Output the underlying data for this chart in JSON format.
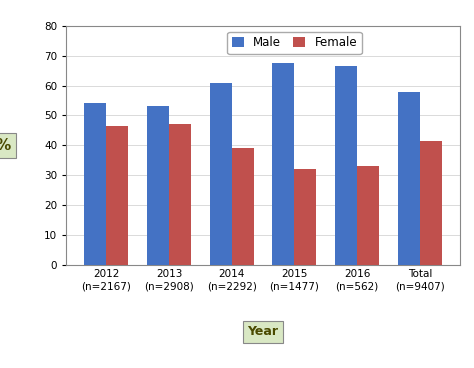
{
  "categories": [
    "2012\n(n=2167)",
    "2013\n(n=2908)",
    "2014\n(n=2292)",
    "2015\n(n=1477)",
    "2016\n(n=562)",
    "Total\n(n=9407)"
  ],
  "male_values": [
    54,
    53,
    61,
    67.5,
    66.5,
    58
  ],
  "female_values": [
    46.5,
    47,
    39,
    32,
    33,
    41.5
  ],
  "male_color": "#4472C4",
  "female_color": "#C0504D",
  "ylabel": "%",
  "xlabel": "Year",
  "ylim": [
    0,
    80
  ],
  "yticks": [
    0,
    10,
    20,
    30,
    40,
    50,
    60,
    70,
    80
  ],
  "legend_labels": [
    "Male",
    "Female"
  ],
  "bar_width": 0.35,
  "background_color": "#ffffff",
  "plot_bg_color": "#ffffff",
  "ylabel_box_color": "#d9e8c4",
  "xlabel_box_color": "#d9e8c4",
  "tick_fontsize": 7.5,
  "legend_fontsize": 8.5,
  "axis_label_fontsize": 9
}
